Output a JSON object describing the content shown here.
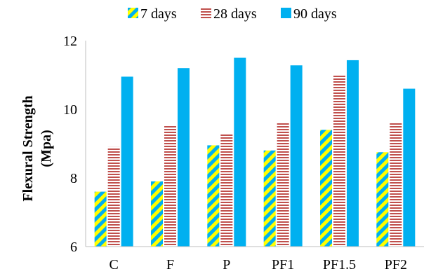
{
  "chart_data": {
    "type": "bar",
    "title": "",
    "xlabel": "",
    "ylabel": "Flexural Strength",
    "ylabel_unit": "(Mpa)",
    "ylim": [
      6,
      12
    ],
    "yticks": [
      6,
      8,
      10,
      12
    ],
    "grid": false,
    "legend_position": "top",
    "categories": [
      "C",
      "F",
      "P",
      "PF1",
      "PF1.5",
      "PF2"
    ],
    "series": [
      {
        "name": "7 days",
        "pattern": "diagonal-stripes",
        "colors": [
          "#FFFF00",
          "#00B0F0"
        ],
        "values": [
          7.6,
          7.9,
          8.95,
          8.8,
          9.4,
          8.75
        ]
      },
      {
        "name": "28 days",
        "pattern": "horizontal-lines",
        "colors": [
          "#C0504D",
          "#FFFFFF"
        ],
        "values": [
          8.9,
          9.55,
          9.3,
          9.6,
          11.0,
          9.6
        ]
      },
      {
        "name": "90 days",
        "pattern": "solid",
        "colors": [
          "#00B0F0"
        ],
        "values": [
          10.95,
          11.2,
          11.5,
          11.28,
          11.43,
          10.6
        ]
      }
    ]
  }
}
